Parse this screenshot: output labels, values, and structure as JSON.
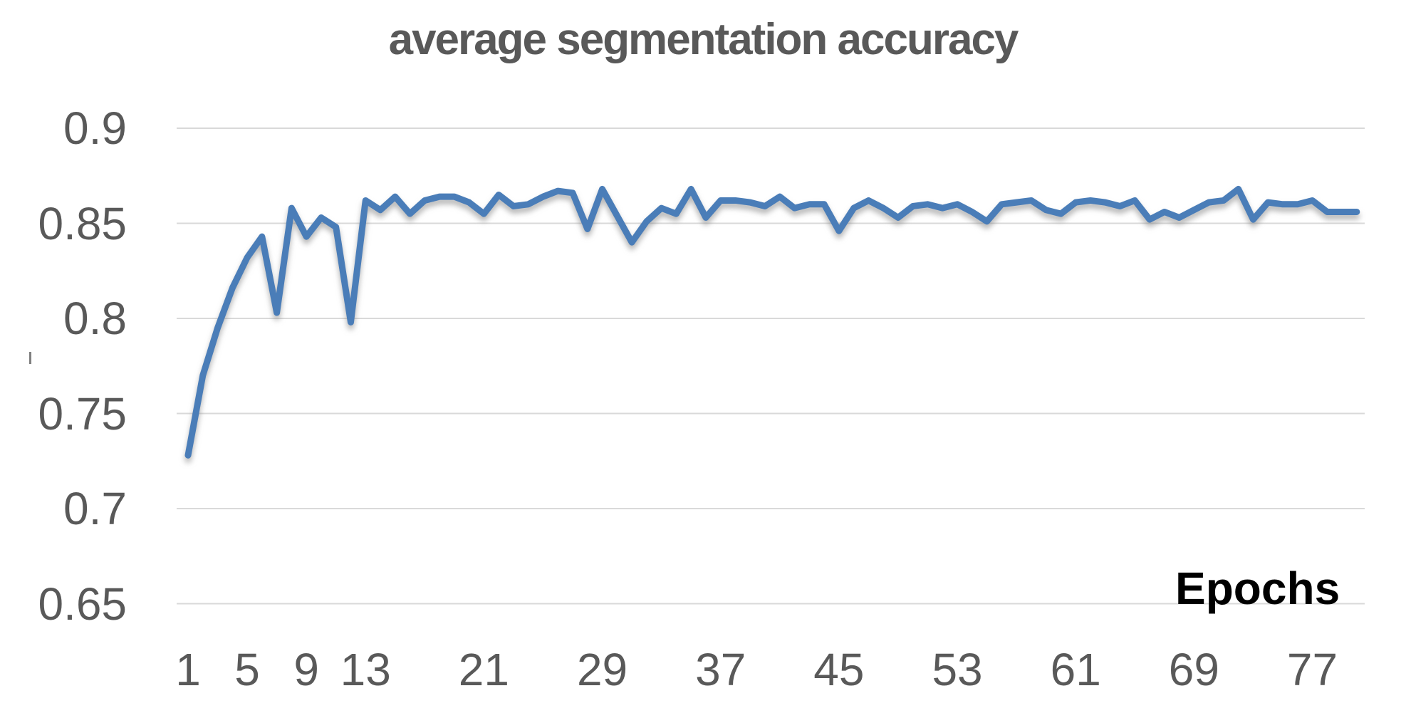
{
  "chart_data": {
    "type": "line",
    "title": "average segmentation accuracy",
    "xlabel": "Epochs",
    "ylabel": "",
    "grid": true,
    "legend_position": "none",
    "ylim": [
      0.65,
      0.9
    ],
    "xlim": [
      1,
      80
    ],
    "yticks": [
      0.9,
      0.85,
      0.8,
      0.75,
      0.7,
      0.65
    ],
    "ytick_labels": [
      "0.9",
      "0.85",
      "0.8",
      "0.75",
      "0.7",
      "0.65"
    ],
    "xticks": [
      1,
      5,
      9,
      13,
      21,
      29,
      37,
      45,
      53,
      61,
      69,
      77
    ],
    "x": [
      1,
      2,
      3,
      4,
      5,
      6,
      7,
      8,
      9,
      10,
      11,
      12,
      13,
      14,
      15,
      16,
      17,
      18,
      19,
      20,
      21,
      22,
      23,
      24,
      25,
      26,
      27,
      28,
      29,
      30,
      31,
      32,
      33,
      34,
      35,
      36,
      37,
      38,
      39,
      40,
      41,
      42,
      43,
      44,
      45,
      46,
      47,
      48,
      49,
      50,
      51,
      52,
      53,
      54,
      55,
      56,
      57,
      58,
      59,
      60,
      61,
      62,
      63,
      64,
      65,
      66,
      67,
      68,
      69,
      70,
      71,
      72,
      73,
      74,
      75,
      76,
      77,
      78,
      79,
      80
    ],
    "series": [
      {
        "name": "average segmentation accuracy",
        "values": [
          0.728,
          0.77,
          0.795,
          0.816,
          0.832,
          0.843,
          0.803,
          0.858,
          0.843,
          0.853,
          0.848,
          0.798,
          0.862,
          0.857,
          0.864,
          0.855,
          0.862,
          0.864,
          0.864,
          0.861,
          0.855,
          0.865,
          0.859,
          0.86,
          0.864,
          0.867,
          0.866,
          0.847,
          0.868,
          0.854,
          0.84,
          0.851,
          0.858,
          0.855,
          0.868,
          0.853,
          0.862,
          0.862,
          0.861,
          0.859,
          0.864,
          0.858,
          0.86,
          0.86,
          0.846,
          0.858,
          0.862,
          0.858,
          0.853,
          0.859,
          0.86,
          0.858,
          0.86,
          0.856,
          0.851,
          0.86,
          0.861,
          0.862,
          0.857,
          0.855,
          0.861,
          0.862,
          0.861,
          0.859,
          0.862,
          0.852,
          0.856,
          0.853,
          0.857,
          0.861,
          0.862,
          0.868,
          0.852,
          0.861,
          0.86,
          0.86,
          0.862,
          0.856,
          0.856,
          0.856
        ]
      }
    ]
  },
  "colors": {
    "line": "#4a7db8",
    "grid": "#d9d9d9",
    "axis_text": "#595959",
    "xaxis_title_text": "#000000",
    "background": "#ffffff"
  }
}
